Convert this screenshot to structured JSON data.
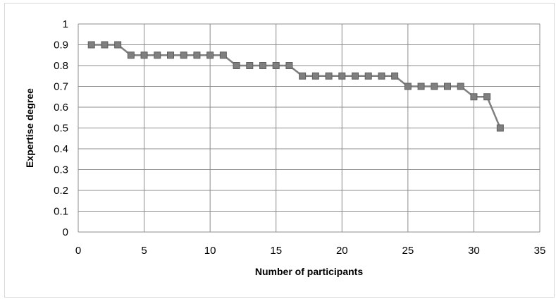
{
  "chart_data": {
    "type": "line",
    "title": "",
    "xlabel": "Number of participants",
    "ylabel": "Expertise degree",
    "xlim": [
      0,
      35
    ],
    "ylim": [
      0,
      1
    ],
    "xticks": [
      0,
      5,
      10,
      15,
      20,
      25,
      30,
      35
    ],
    "yticks": [
      0,
      0.1,
      0.2,
      0.3,
      0.4,
      0.5,
      0.6,
      0.7,
      0.8,
      0.9,
      1
    ],
    "grid": true,
    "legend": "none",
    "series": [
      {
        "marker": "square",
        "color": "#7f7f7f",
        "x": [
          1,
          2,
          3,
          4,
          5,
          6,
          7,
          8,
          9,
          10,
          11,
          12,
          13,
          14,
          15,
          16,
          17,
          18,
          19,
          20,
          21,
          22,
          23,
          24,
          25,
          26,
          27,
          28,
          29,
          30,
          31,
          32
        ],
        "y": [
          0.9,
          0.9,
          0.9,
          0.85,
          0.85,
          0.85,
          0.85,
          0.85,
          0.85,
          0.85,
          0.85,
          0.8,
          0.8,
          0.8,
          0.8,
          0.8,
          0.75,
          0.75,
          0.75,
          0.75,
          0.75,
          0.75,
          0.75,
          0.75,
          0.7,
          0.7,
          0.7,
          0.7,
          0.7,
          0.65,
          0.65,
          0.5
        ]
      }
    ]
  },
  "colors": {
    "series": "#7f7f7f",
    "marker_fill": "#7f7f7f",
    "marker_stroke": "#5f5f5f",
    "grid": "#8c8c8c",
    "axis": "#8c8c8c"
  }
}
